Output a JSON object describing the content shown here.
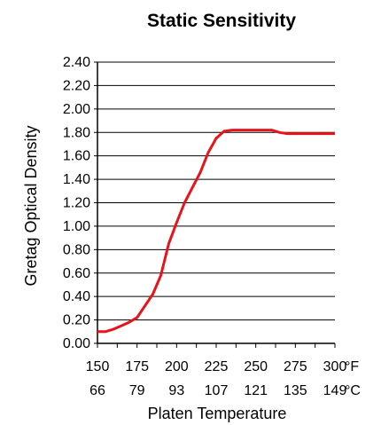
{
  "chart_data": {
    "type": "line",
    "title": "Static Sensitivity",
    "xlabel": "Platen Temperature",
    "ylabel": "Gretag Optical Density",
    "x_units": [
      "°F",
      "°C"
    ],
    "x_ticks_f": [
      "150",
      "175",
      "200",
      "225",
      "250",
      "275",
      "300"
    ],
    "x_ticks_c": [
      "66",
      "79",
      "93",
      "107",
      "121",
      "135",
      "149"
    ],
    "y_ticks": [
      "0.00",
      "0.20",
      "0.40",
      "0.60",
      "0.80",
      "1.00",
      "1.20",
      "1.40",
      "1.60",
      "1.80",
      "2.00",
      "2.20",
      "2.40"
    ],
    "xlim": [
      150,
      300
    ],
    "ylim": [
      0,
      2.4
    ],
    "grid": "horizontal",
    "line_color": "#e8141c",
    "series": [
      {
        "x": [
          150,
          155,
          160,
          165,
          170,
          175,
          180,
          185,
          190,
          195,
          200,
          205,
          210,
          215,
          220,
          225,
          230,
          235,
          240,
          250,
          260,
          265,
          270,
          280,
          290,
          300
        ],
        "y": [
          0.1,
          0.1,
          0.12,
          0.15,
          0.18,
          0.22,
          0.32,
          0.42,
          0.58,
          0.85,
          1.03,
          1.2,
          1.33,
          1.46,
          1.63,
          1.75,
          1.81,
          1.82,
          1.82,
          1.82,
          1.82,
          1.8,
          1.79,
          1.79,
          1.79,
          1.79
        ]
      }
    ]
  }
}
